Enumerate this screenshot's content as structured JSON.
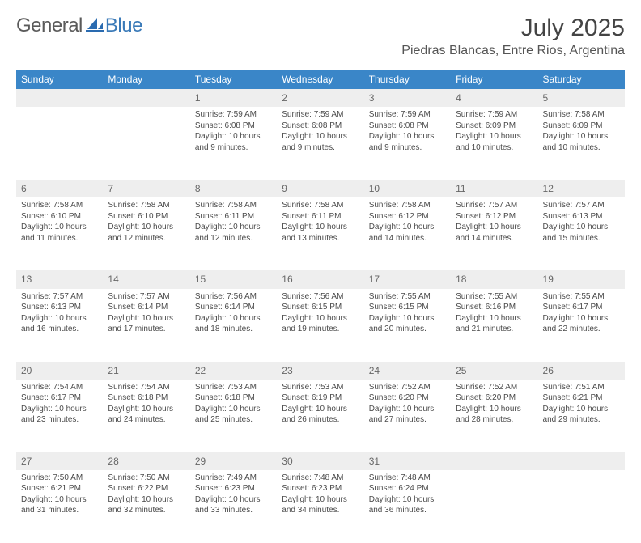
{
  "brand": {
    "text1": "General",
    "text2": "Blue"
  },
  "title": "July 2025",
  "location": "Piedras Blancas, Entre Rios, Argentina",
  "colors": {
    "header_bg": "#3a86c8",
    "header_text": "#ffffff",
    "daynum_bg": "#eeeeee",
    "daynum_text": "#666666",
    "body_text": "#4a4a4a",
    "brand_gray": "#5a5a5a",
    "brand_blue": "#3a7ab8"
  },
  "weekdays": [
    "Sunday",
    "Monday",
    "Tuesday",
    "Wednesday",
    "Thursday",
    "Friday",
    "Saturday"
  ],
  "first_weekday_index": 2,
  "days": [
    {
      "n": 1,
      "sunrise": "7:59 AM",
      "sunset": "6:08 PM",
      "daylight": "10 hours and 9 minutes."
    },
    {
      "n": 2,
      "sunrise": "7:59 AM",
      "sunset": "6:08 PM",
      "daylight": "10 hours and 9 minutes."
    },
    {
      "n": 3,
      "sunrise": "7:59 AM",
      "sunset": "6:08 PM",
      "daylight": "10 hours and 9 minutes."
    },
    {
      "n": 4,
      "sunrise": "7:59 AM",
      "sunset": "6:09 PM",
      "daylight": "10 hours and 10 minutes."
    },
    {
      "n": 5,
      "sunrise": "7:58 AM",
      "sunset": "6:09 PM",
      "daylight": "10 hours and 10 minutes."
    },
    {
      "n": 6,
      "sunrise": "7:58 AM",
      "sunset": "6:10 PM",
      "daylight": "10 hours and 11 minutes."
    },
    {
      "n": 7,
      "sunrise": "7:58 AM",
      "sunset": "6:10 PM",
      "daylight": "10 hours and 12 minutes."
    },
    {
      "n": 8,
      "sunrise": "7:58 AM",
      "sunset": "6:11 PM",
      "daylight": "10 hours and 12 minutes."
    },
    {
      "n": 9,
      "sunrise": "7:58 AM",
      "sunset": "6:11 PM",
      "daylight": "10 hours and 13 minutes."
    },
    {
      "n": 10,
      "sunrise": "7:58 AM",
      "sunset": "6:12 PM",
      "daylight": "10 hours and 14 minutes."
    },
    {
      "n": 11,
      "sunrise": "7:57 AM",
      "sunset": "6:12 PM",
      "daylight": "10 hours and 14 minutes."
    },
    {
      "n": 12,
      "sunrise": "7:57 AM",
      "sunset": "6:13 PM",
      "daylight": "10 hours and 15 minutes."
    },
    {
      "n": 13,
      "sunrise": "7:57 AM",
      "sunset": "6:13 PM",
      "daylight": "10 hours and 16 minutes."
    },
    {
      "n": 14,
      "sunrise": "7:57 AM",
      "sunset": "6:14 PM",
      "daylight": "10 hours and 17 minutes."
    },
    {
      "n": 15,
      "sunrise": "7:56 AM",
      "sunset": "6:14 PM",
      "daylight": "10 hours and 18 minutes."
    },
    {
      "n": 16,
      "sunrise": "7:56 AM",
      "sunset": "6:15 PM",
      "daylight": "10 hours and 19 minutes."
    },
    {
      "n": 17,
      "sunrise": "7:55 AM",
      "sunset": "6:15 PM",
      "daylight": "10 hours and 20 minutes."
    },
    {
      "n": 18,
      "sunrise": "7:55 AM",
      "sunset": "6:16 PM",
      "daylight": "10 hours and 21 minutes."
    },
    {
      "n": 19,
      "sunrise": "7:55 AM",
      "sunset": "6:17 PM",
      "daylight": "10 hours and 22 minutes."
    },
    {
      "n": 20,
      "sunrise": "7:54 AM",
      "sunset": "6:17 PM",
      "daylight": "10 hours and 23 minutes."
    },
    {
      "n": 21,
      "sunrise": "7:54 AM",
      "sunset": "6:18 PM",
      "daylight": "10 hours and 24 minutes."
    },
    {
      "n": 22,
      "sunrise": "7:53 AM",
      "sunset": "6:18 PM",
      "daylight": "10 hours and 25 minutes."
    },
    {
      "n": 23,
      "sunrise": "7:53 AM",
      "sunset": "6:19 PM",
      "daylight": "10 hours and 26 minutes."
    },
    {
      "n": 24,
      "sunrise": "7:52 AM",
      "sunset": "6:20 PM",
      "daylight": "10 hours and 27 minutes."
    },
    {
      "n": 25,
      "sunrise": "7:52 AM",
      "sunset": "6:20 PM",
      "daylight": "10 hours and 28 minutes."
    },
    {
      "n": 26,
      "sunrise": "7:51 AM",
      "sunset": "6:21 PM",
      "daylight": "10 hours and 29 minutes."
    },
    {
      "n": 27,
      "sunrise": "7:50 AM",
      "sunset": "6:21 PM",
      "daylight": "10 hours and 31 minutes."
    },
    {
      "n": 28,
      "sunrise": "7:50 AM",
      "sunset": "6:22 PM",
      "daylight": "10 hours and 32 minutes."
    },
    {
      "n": 29,
      "sunrise": "7:49 AM",
      "sunset": "6:23 PM",
      "daylight": "10 hours and 33 minutes."
    },
    {
      "n": 30,
      "sunrise": "7:48 AM",
      "sunset": "6:23 PM",
      "daylight": "10 hours and 34 minutes."
    },
    {
      "n": 31,
      "sunrise": "7:48 AM",
      "sunset": "6:24 PM",
      "daylight": "10 hours and 36 minutes."
    }
  ],
  "labels": {
    "sunrise": "Sunrise:",
    "sunset": "Sunset:",
    "daylight": "Daylight:"
  }
}
